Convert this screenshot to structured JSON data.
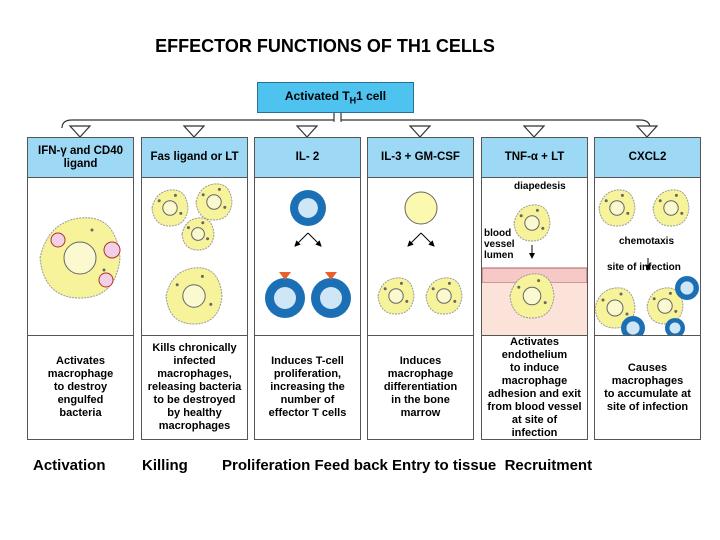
{
  "title": "EFFECTOR FUNCTIONS OF TH1 CELLS",
  "source": {
    "label": "Activated T",
    "sub": "H",
    "suffix": "1 cell"
  },
  "columns": [
    {
      "header": "IFN-γ and CD40 ligand",
      "description": "Activates\nmacrophage\nto destroy\nengulfed\nbacteria"
    },
    {
      "header": "Fas ligand or LT",
      "description": "Kills chronically\ninfected\nmacrophages,\nreleasing bacteria\nto be destroyed\nby healthy\nmacrophages"
    },
    {
      "header": "IL- 2",
      "description": "Induces T-cell\nproliferation,\nincreasing the\nnumber of\neffector T cells"
    },
    {
      "header": "IL-3 + GM-CSF",
      "description": "Induces\nmacrophage\ndifferentiation\nin the bone\nmarrow"
    },
    {
      "header": "TNF-α + LT",
      "description": "Activates\nendothelium\nto induce\nmacrophage\nadhesion and exit\nfrom blood vessel\nat site of\ninfection"
    },
    {
      "header": "CXCL2",
      "description": "Causes\nmacrophages\nto accumulate at\nsite of infection"
    }
  ],
  "illustration_labels": {
    "diapedesis": "diapedesis",
    "blood_vessel_lumen": "blood\nvessel\nlumen",
    "chemotaxis": "chemotaxis",
    "site_of_infection": "site of infection"
  },
  "bottom_labels": [
    "Activation",
    "Killing",
    "Proliferation Feed back Entry to tissue  Recruitment"
  ],
  "colors": {
    "header_fill": "#9dd8f5",
    "source_fill": "#4fc3f0",
    "macrophage": "#f6f39a",
    "tcell": "#1a6fb5",
    "endothelium": "#f6c8c8"
  }
}
